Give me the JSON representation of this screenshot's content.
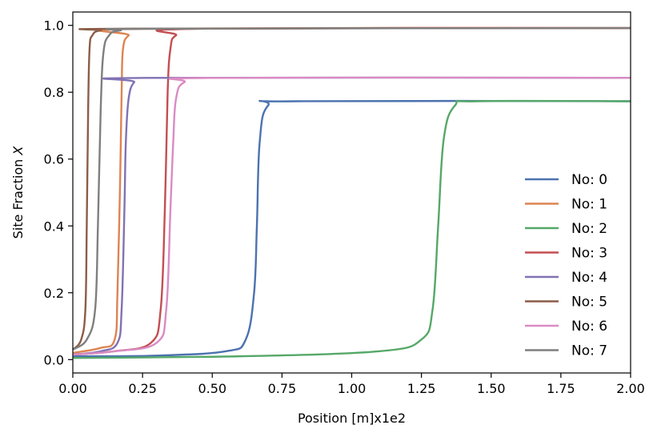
{
  "chart_data": {
    "type": "line",
    "xlabel": "Position [m]x1e2",
    "ylabel": "Site Fraction X",
    "xlim": [
      0.0,
      2.0
    ],
    "ylim": [
      -0.04,
      1.04
    ],
    "x_ticks": [
      "0.00",
      "0.25",
      "0.50",
      "0.75",
      "1.00",
      "1.25",
      "1.50",
      "1.75",
      "2.00"
    ],
    "y_ticks": [
      "0.0",
      "0.2",
      "0.4",
      "0.6",
      "0.8",
      "1.0"
    ],
    "grid": false,
    "legend_position": "lower-right",
    "series": [
      {
        "name": "No: 0",
        "color": "#4c72b0",
        "x": [
          0.0,
          0.3,
          0.55,
          0.62,
          0.65,
          0.66,
          0.67,
          0.7,
          0.8,
          2.0
        ],
        "y": [
          0.01,
          0.012,
          0.025,
          0.06,
          0.2,
          0.4,
          0.65,
          0.76,
          0.773,
          0.773
        ]
      },
      {
        "name": "No: 1",
        "color": "#dd8452",
        "x": [
          0.0,
          0.1,
          0.15,
          0.16,
          0.17,
          0.175,
          0.18,
          0.2,
          0.25,
          2.0
        ],
        "y": [
          0.02,
          0.035,
          0.06,
          0.2,
          0.55,
          0.8,
          0.93,
          0.97,
          0.99,
          0.992
        ]
      },
      {
        "name": "No: 2",
        "color": "#55a868",
        "x": [
          0.0,
          0.6,
          1.1,
          1.25,
          1.29,
          1.31,
          1.33,
          1.37,
          1.45,
          2.0
        ],
        "y": [
          0.005,
          0.01,
          0.025,
          0.06,
          0.15,
          0.4,
          0.66,
          0.76,
          0.773,
          0.773
        ]
      },
      {
        "name": "No: 3",
        "color": "#c44e52",
        "x": [
          0.0,
          0.15,
          0.28,
          0.315,
          0.33,
          0.34,
          0.35,
          0.37,
          0.45,
          2.0
        ],
        "y": [
          0.015,
          0.025,
          0.05,
          0.15,
          0.45,
          0.8,
          0.93,
          0.97,
          0.99,
          0.992
        ]
      },
      {
        "name": "No: 4",
        "color": "#8172b3",
        "x": [
          0.0,
          0.1,
          0.16,
          0.175,
          0.185,
          0.19,
          0.2,
          0.22,
          0.26,
          2.0
        ],
        "y": [
          0.015,
          0.025,
          0.05,
          0.15,
          0.45,
          0.65,
          0.78,
          0.83,
          0.843,
          0.843
        ]
      },
      {
        "name": "No: 5",
        "color": "#8c5d48",
        "x": [
          0.0,
          0.03,
          0.045,
          0.05,
          0.055,
          0.06,
          0.07,
          0.1,
          0.2,
          2.0
        ],
        "y": [
          0.03,
          0.06,
          0.15,
          0.4,
          0.75,
          0.93,
          0.97,
          0.985,
          0.99,
          0.992
        ]
      },
      {
        "name": "No: 6",
        "color": "#da8bc3",
        "x": [
          0.0,
          0.15,
          0.3,
          0.335,
          0.35,
          0.36,
          0.37,
          0.4,
          0.5,
          2.0
        ],
        "y": [
          0.015,
          0.025,
          0.05,
          0.15,
          0.45,
          0.65,
          0.78,
          0.83,
          0.843,
          0.843
        ]
      },
      {
        "name": "No: 7",
        "color": "#7f7f7f",
        "x": [
          0.0,
          0.05,
          0.08,
          0.09,
          0.1,
          0.11,
          0.13,
          0.17,
          0.3,
          2.0
        ],
        "y": [
          0.03,
          0.06,
          0.15,
          0.4,
          0.75,
          0.92,
          0.97,
          0.985,
          0.99,
          0.992
        ]
      }
    ]
  }
}
